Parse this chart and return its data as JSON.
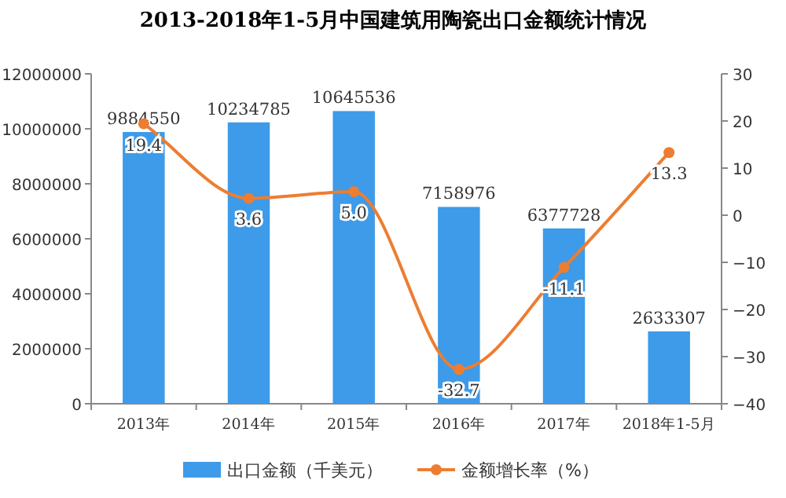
{
  "chart_data": {
    "type": "bar",
    "title": "2013-2018年1-5月中国建筑用陶瓷出口金额统计情况",
    "categories": [
      "2013年",
      "2014年",
      "2015年",
      "2016年",
      "2017年",
      "2018年1-5月"
    ],
    "series": [
      {
        "name": "出口金额（千美元）",
        "color": "#3d9be9",
        "values": [
          9884550,
          10234785,
          10645536,
          7158976,
          6377728,
          2633307
        ]
      },
      {
        "name": "金额增长率（%）",
        "type": "line",
        "axis": "y2",
        "color": "#ed7d31",
        "values": [
          19.4,
          3.6,
          5.0,
          -32.7,
          -11.1,
          13.3
        ],
        "value_labels": [
          "19.4",
          "3.6",
          "5.0",
          "-32.7",
          "-11.1",
          "13.3"
        ]
      }
    ],
    "ylim": [
      0,
      12000000
    ],
    "yticks": [
      0,
      2000000,
      4000000,
      6000000,
      8000000,
      10000000,
      12000000
    ],
    "y2lim": [
      -40,
      30
    ],
    "y2ticks": [
      -40,
      -30,
      -20,
      -10,
      0,
      10,
      20,
      30
    ],
    "data_labels": true,
    "legend": "bottom",
    "marker": "circle",
    "grid": false,
    "line_style": "solid"
  }
}
